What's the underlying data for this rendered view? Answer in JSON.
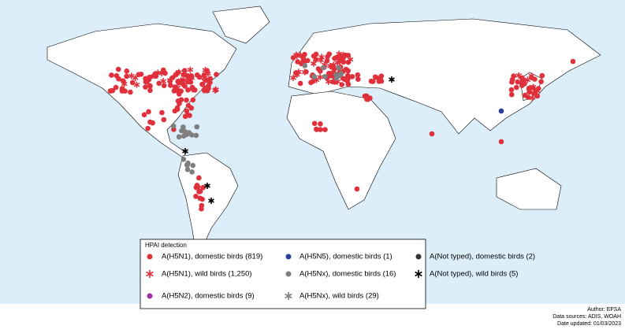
{
  "legend": {
    "title": "HPAI detection",
    "items": [
      "A(H5N1), domestic birds (819)",
      "A(H5N5), domestic birds (1)",
      "A(Not typed), domestic birds (2)",
      "A(H5N1), wild birds (1,250)",
      "A(H5Nx), domestic birds (16)",
      "A(Not typed), wild birds (5)",
      "A(H5N2), domestic birds (9)",
      "A(H5Nx), wild birds (29)"
    ]
  },
  "credits": [
    "Author: EFSA",
    "Data sources: ADIS, WOAH",
    "Date updated: 01/03/2023"
  ]
}
